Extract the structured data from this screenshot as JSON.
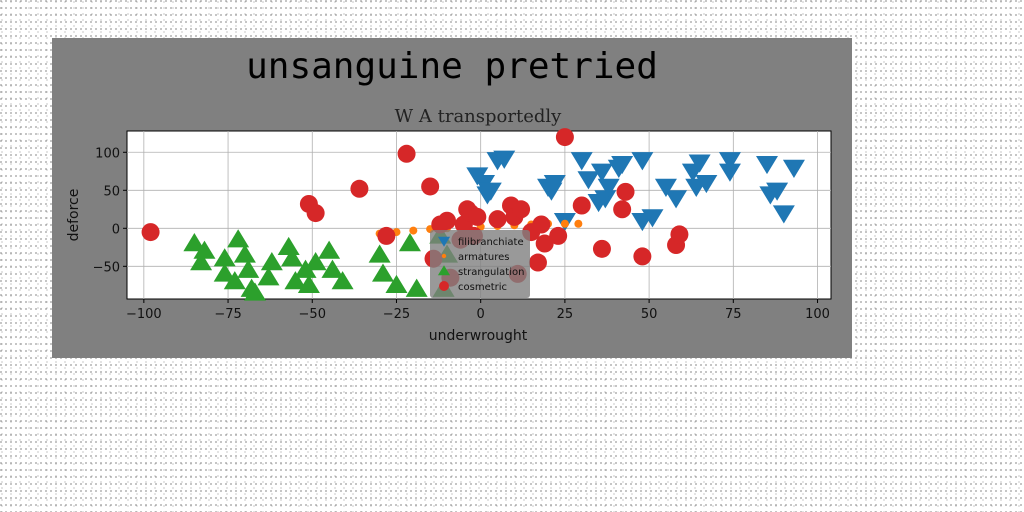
{
  "chart_data": {
    "type": "scatter",
    "title": "unsanguine pretried",
    "subtitle": "W A transportedly",
    "xlabel": "underwrought",
    "ylabel": "deforce",
    "xlim": [
      -105,
      104
    ],
    "ylim": [
      -93,
      128
    ],
    "xticks": [
      -100,
      -75,
      -50,
      -25,
      0,
      25,
      50,
      75,
      100
    ],
    "yticks": [
      -50,
      0,
      50,
      100
    ],
    "grid": true,
    "legend_position": "center",
    "series": [
      {
        "name": "filibranchiate",
        "marker": "triangle-down",
        "color": "#1f77b4",
        "points": [
          [
            -1,
            70
          ],
          [
            1,
            60
          ],
          [
            2,
            45
          ],
          [
            5,
            90
          ],
          [
            7,
            92
          ],
          [
            3,
            50
          ],
          [
            20,
            55
          ],
          [
            21,
            50
          ],
          [
            22,
            60
          ],
          [
            25,
            10
          ],
          [
            30,
            90
          ],
          [
            32,
            65
          ],
          [
            36,
            75
          ],
          [
            37,
            40
          ],
          [
            35,
            35
          ],
          [
            38,
            55
          ],
          [
            41,
            80
          ],
          [
            42,
            85
          ],
          [
            48,
            90
          ],
          [
            51,
            15
          ],
          [
            48,
            10
          ],
          [
            55,
            55
          ],
          [
            58,
            40
          ],
          [
            63,
            75
          ],
          [
            64,
            55
          ],
          [
            65,
            87
          ],
          [
            67,
            60
          ],
          [
            74,
            90
          ],
          [
            74,
            75
          ],
          [
            85,
            85
          ],
          [
            86,
            45
          ],
          [
            88,
            50
          ],
          [
            90,
            20
          ],
          [
            93,
            80
          ]
        ]
      },
      {
        "name": "armatures",
        "marker": "circle-small",
        "color": "#ff7f0e",
        "points": [
          [
            -30,
            -7
          ],
          [
            -25,
            -5
          ],
          [
            -20,
            -3
          ],
          [
            -15,
            -1
          ],
          [
            -10,
            0
          ],
          [
            -5,
            1
          ],
          [
            0,
            2
          ],
          [
            5,
            3
          ],
          [
            10,
            4
          ],
          [
            15,
            5
          ],
          [
            20,
            6
          ],
          [
            25,
            6
          ],
          [
            29,
            6
          ]
        ]
      },
      {
        "name": "strangulation",
        "marker": "triangle-up",
        "color": "#2ca02c",
        "points": [
          [
            -85,
            -20
          ],
          [
            -82,
            -30
          ],
          [
            -83,
            -45
          ],
          [
            -76,
            -40
          ],
          [
            -76,
            -60
          ],
          [
            -73,
            -70
          ],
          [
            -72,
            -15
          ],
          [
            -70,
            -35
          ],
          [
            -69,
            -55
          ],
          [
            -68,
            -80
          ],
          [
            -67,
            -85
          ],
          [
            -62,
            -45
          ],
          [
            -63,
            -65
          ],
          [
            -57,
            -25
          ],
          [
            -56,
            -40
          ],
          [
            -55,
            -70
          ],
          [
            -52,
            -55
          ],
          [
            -51,
            -75
          ],
          [
            -49,
            -45
          ],
          [
            -45,
            -30
          ],
          [
            -44,
            -55
          ],
          [
            -41,
            -70
          ],
          [
            -30,
            -35
          ],
          [
            -29,
            -60
          ],
          [
            -25,
            -75
          ],
          [
            -21,
            -20
          ],
          [
            -19,
            -80
          ],
          [
            -12,
            -10
          ],
          [
            -10,
            -35
          ],
          [
            -11,
            -80
          ]
        ]
      },
      {
        "name": "cosmetric",
        "marker": "circle",
        "color": "#d62728",
        "points": [
          [
            -98,
            -5
          ],
          [
            -51,
            32
          ],
          [
            -49,
            20
          ],
          [
            -36,
            52
          ],
          [
            -22,
            98
          ],
          [
            -28,
            -10
          ],
          [
            -15,
            55
          ],
          [
            -14,
            -40
          ],
          [
            -12,
            5
          ],
          [
            -10,
            10
          ],
          [
            -6,
            -15
          ],
          [
            -5,
            5
          ],
          [
            -4,
            25
          ],
          [
            -3,
            20
          ],
          [
            -2,
            -10
          ],
          [
            -1,
            15
          ],
          [
            5,
            12
          ],
          [
            9,
            30
          ],
          [
            10,
            15
          ],
          [
            12,
            25
          ],
          [
            15,
            -5
          ],
          [
            17,
            -45
          ],
          [
            18,
            5
          ],
          [
            19,
            -20
          ],
          [
            23,
            -10
          ],
          [
            25,
            120
          ],
          [
            30,
            30
          ],
          [
            36,
            -27
          ],
          [
            42,
            25
          ],
          [
            43,
            48
          ],
          [
            48,
            -37
          ],
          [
            58,
            -22
          ],
          [
            59,
            -8
          ],
          [
            11,
            -60
          ],
          [
            -9,
            -65
          ]
        ]
      }
    ]
  }
}
